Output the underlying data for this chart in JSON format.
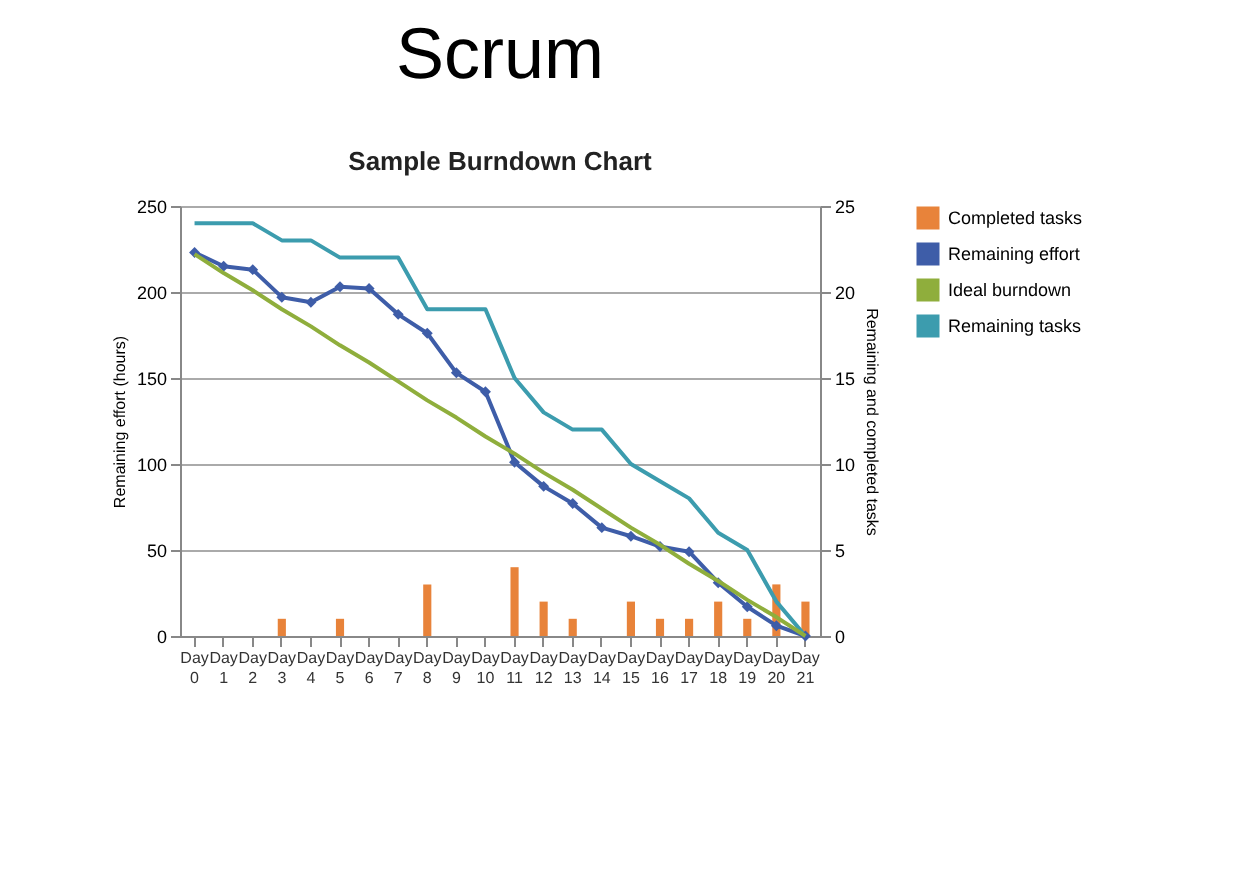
{
  "chart_data": {
    "type": "line",
    "title": "Scrum",
    "subtitle": "Sample Burndown Chart",
    "ylabel": "Remaining effort (hours)",
    "y2label": "Remaining and completed tasks",
    "categories": [
      "Day 0",
      "Day 1",
      "Day 2",
      "Day 3",
      "Day 4",
      "Day 5",
      "Day 6",
      "Day 7",
      "Day 8",
      "Day 9",
      "Day 10",
      "Day 11",
      "Day 12",
      "Day 13",
      "Day 14",
      "Day 15",
      "Day 16",
      "Day 17",
      "Day 18",
      "Day 19",
      "Day 20",
      "Day 21"
    ],
    "series": [
      {
        "name": "Completed tasks",
        "type": "bar",
        "axis": "y2",
        "color": "#e8833a",
        "values": [
          0,
          0,
          0,
          1,
          0,
          1,
          0,
          0,
          3,
          0,
          0,
          4,
          2,
          1,
          0,
          2,
          1,
          1,
          2,
          1,
          3,
          2
        ]
      },
      {
        "name": "Remaining effort",
        "marker": "diamond",
        "color": "#3e5da8",
        "values": [
          223,
          215,
          213,
          197,
          194,
          203,
          202,
          187,
          176,
          153,
          142,
          101,
          87,
          77,
          63,
          58,
          52,
          49,
          31,
          17,
          6,
          0
        ]
      },
      {
        "name": "Ideal burndown",
        "color": "#8fae3c",
        "values": [
          222,
          211,
          201,
          190,
          180,
          169,
          159,
          148,
          137,
          127,
          116,
          106,
          95,
          85,
          74,
          63,
          53,
          42,
          32,
          21,
          11,
          0
        ]
      },
      {
        "name": "Remaining tasks",
        "axis": "y2",
        "color": "#3c9cae",
        "values": [
          24,
          24,
          24,
          23,
          23,
          22,
          22,
          22,
          19,
          19,
          19,
          15,
          13,
          12,
          12,
          10,
          9,
          8,
          6,
          5,
          2,
          0
        ]
      }
    ],
    "ylim": [
      0,
      250
    ],
    "yticks": [
      0,
      50,
      100,
      150,
      200,
      250
    ],
    "y2lim": [
      0,
      25
    ],
    "y2ticks": [
      0,
      5,
      10,
      15,
      20,
      25
    ],
    "grid": "y",
    "legend": "right"
  }
}
